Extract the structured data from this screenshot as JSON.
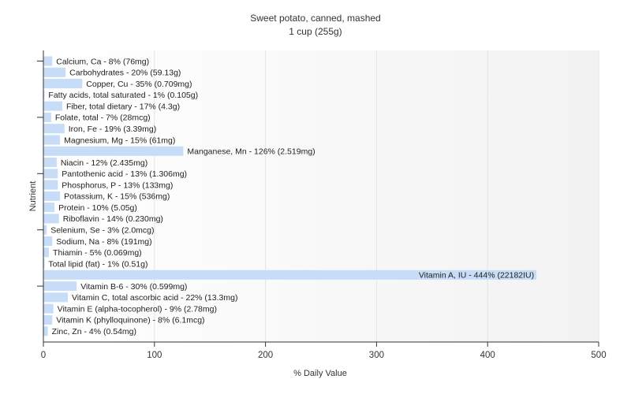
{
  "chart_data": {
    "type": "bar",
    "orientation": "horizontal",
    "title": "Sweet potato, canned, mashed",
    "subtitle": "1 cup (255g)",
    "xlabel": "% Daily Value",
    "ylabel": "Nutrient",
    "xlim": [
      0,
      500
    ],
    "xticks": [
      0,
      100,
      200,
      300,
      400,
      500
    ],
    "grid": true,
    "bar_color": "#c6dcf7",
    "categories": [
      "Calcium, Ca",
      "Carbohydrates",
      "Copper, Cu",
      "Fatty acids, total saturated",
      "Fiber, total dietary",
      "Folate, total",
      "Iron, Fe",
      "Magnesium, Mg",
      "Manganese, Mn",
      "Niacin",
      "Pantothenic acid",
      "Phosphorus, P",
      "Potassium, K",
      "Protein",
      "Riboflavin",
      "Selenium, Se",
      "Sodium, Na",
      "Thiamin",
      "Total lipid (fat)",
      "Vitamin A, IU",
      "Vitamin B-6",
      "Vitamin C, total ascorbic acid",
      "Vitamin E (alpha-tocopherol)",
      "Vitamin K (phylloquinone)",
      "Zinc, Zn"
    ],
    "values": [
      8,
      20,
      35,
      1,
      17,
      7,
      19,
      15,
      126,
      12,
      13,
      13,
      15,
      10,
      14,
      3,
      8,
      5,
      1,
      444,
      30,
      22,
      9,
      8,
      4
    ],
    "labels": [
      "Calcium, Ca - 8% (76mg)",
      "Carbohydrates - 20% (59.13g)",
      "Copper, Cu - 35% (0.709mg)",
      "Fatty acids, total saturated - 1% (0.105g)",
      "Fiber, total dietary - 17% (4.3g)",
      "Folate, total - 7% (28mcg)",
      "Iron, Fe - 19% (3.39mg)",
      "Magnesium, Mg - 15% (61mg)",
      "Manganese, Mn - 126% (2.519mg)",
      "Niacin - 12% (2.435mg)",
      "Pantothenic acid - 13% (1.306mg)",
      "Phosphorus, P - 13% (133mg)",
      "Potassium, K - 15% (536mg)",
      "Protein - 10% (5.05g)",
      "Riboflavin - 14% (0.230mg)",
      "Selenium, Se - 3% (2.0mcg)",
      "Sodium, Na - 8% (191mg)",
      "Thiamin - 5% (0.069mg)",
      "Total lipid (fat) - 1% (0.51g)",
      "Vitamin A, IU - 444% (22182IU)",
      "Vitamin B-6 - 30% (0.599mg)",
      "Vitamin C, total ascorbic acid - 22% (13.3mg)",
      "Vitamin E (alpha-tocopherol) - 9% (2.78mg)",
      "Vitamin K (phylloquinone) - 8% (6.1mcg)",
      "Zinc, Zn - 4% (0.54mg)"
    ]
  }
}
